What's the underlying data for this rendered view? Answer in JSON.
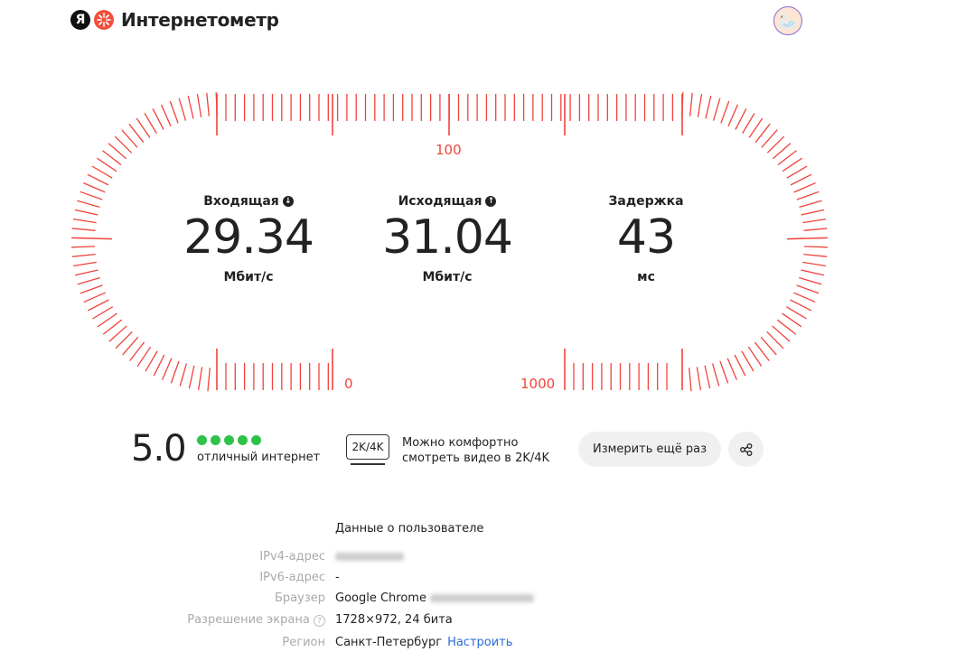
{
  "header": {
    "logo_letter": "Я",
    "brand": "Интернетометр",
    "avatar_icon": "goose-avatar"
  },
  "gauge": {
    "color": "#f0433a",
    "labels": {
      "low": "0",
      "mid": "100",
      "high": "1000"
    }
  },
  "metrics": [
    {
      "label": "Входящая",
      "icon": "arrow-down-circle-icon",
      "value": "29.34",
      "unit": "Мбит/с"
    },
    {
      "label": "Исходящая",
      "icon": "arrow-up-circle-icon",
      "value": "31.04",
      "unit": "Мбит/с"
    },
    {
      "label": "Задержка",
      "value": "43",
      "unit": "мс"
    }
  ],
  "rating": {
    "score": "5.0",
    "dots": 5,
    "dot_color": "#2fc24a",
    "text": "отличный интернет"
  },
  "video": {
    "badge": "2K/4K",
    "line1": "Можно комфортно",
    "line2": "смотреть видео в 2K/4K"
  },
  "actions": {
    "retry": "Измерить ещё раз",
    "share_icon": "share-icon"
  },
  "info": {
    "title": "Данные о пользователе",
    "rows": [
      {
        "label": "IPv4-адрес",
        "value": ""
      },
      {
        "label": "IPv6-адрес",
        "value": "-"
      },
      {
        "label": "Браузер",
        "value": "Google Chrome"
      },
      {
        "label": "Разрешение экрана",
        "value": "1728×972, 24 бита"
      },
      {
        "label": "Регион",
        "value": "Санкт-Петербург",
        "link": "Настроить"
      }
    ]
  }
}
